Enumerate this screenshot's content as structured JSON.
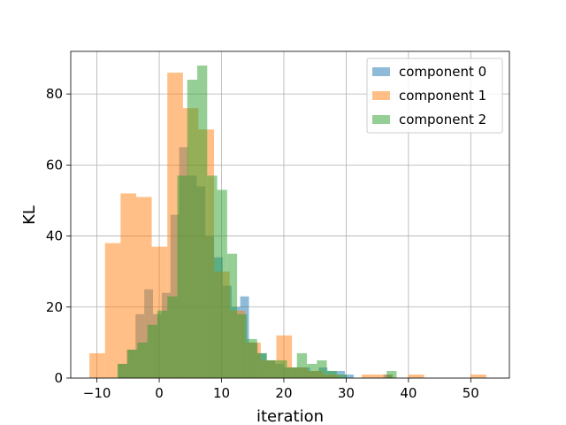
{
  "chart_data": {
    "type": "histogram",
    "xlabel": "iteration",
    "ylabel": "KL",
    "xlim": [
      -14.2,
      56.2
    ],
    "ylim": [
      0,
      92
    ],
    "xticks": [
      -10,
      0,
      10,
      20,
      30,
      40,
      50
    ],
    "yticks": [
      0,
      20,
      40,
      60,
      80
    ],
    "grid": true,
    "legend_position": "top-right",
    "alpha": 0.5,
    "series": [
      {
        "name": "component 0",
        "color": "#1f77b4",
        "bins": [
          [
            -6.6,
            -5.2,
            4
          ],
          [
            -5.2,
            -3.8,
            8
          ],
          [
            -3.8,
            -2.4,
            18
          ],
          [
            -2.4,
            -1.0,
            25
          ],
          [
            -1.0,
            0.4,
            18
          ],
          [
            0.4,
            1.8,
            24
          ],
          [
            1.8,
            3.2,
            46
          ],
          [
            3.2,
            4.6,
            65
          ],
          [
            4.6,
            6.0,
            57
          ],
          [
            6.0,
            7.4,
            54
          ],
          [
            7.4,
            8.8,
            40
          ],
          [
            8.8,
            10.2,
            34
          ],
          [
            10.2,
            11.6,
            26
          ],
          [
            11.6,
            13.0,
            20
          ],
          [
            13.0,
            14.4,
            23
          ],
          [
            14.4,
            15.8,
            10
          ],
          [
            15.8,
            17.2,
            7
          ],
          [
            17.2,
            18.6,
            5
          ],
          [
            18.6,
            20.0,
            4
          ],
          [
            20.0,
            21.4,
            3
          ],
          [
            21.4,
            22.8,
            3
          ],
          [
            22.8,
            24.2,
            3
          ],
          [
            24.2,
            25.6,
            2
          ],
          [
            25.6,
            27.0,
            3
          ],
          [
            27.0,
            28.4,
            2
          ],
          [
            28.4,
            29.8,
            2
          ],
          [
            29.8,
            31.2,
            1
          ],
          [
            36.0,
            37.4,
            1
          ]
        ]
      },
      {
        "name": "component 1",
        "color": "#ff7f0e",
        "bins": [
          [
            -11.2,
            -8.7,
            7
          ],
          [
            -8.7,
            -6.2,
            38
          ],
          [
            -6.2,
            -3.7,
            52
          ],
          [
            -3.7,
            -1.2,
            51
          ],
          [
            -1.2,
            1.3,
            37
          ],
          [
            1.3,
            3.8,
            86
          ],
          [
            3.8,
            6.3,
            76
          ],
          [
            6.3,
            8.8,
            70
          ],
          [
            8.8,
            11.3,
            30
          ],
          [
            11.3,
            13.8,
            19
          ],
          [
            13.8,
            16.3,
            10
          ],
          [
            16.3,
            18.8,
            5
          ],
          [
            18.8,
            21.3,
            12
          ],
          [
            21.3,
            23.8,
            3
          ],
          [
            23.8,
            26.3,
            2
          ],
          [
            26.3,
            28.8,
            1
          ],
          [
            32.5,
            35.0,
            1
          ],
          [
            35.0,
            37.5,
            1
          ],
          [
            40.0,
            42.5,
            1
          ],
          [
            50.0,
            52.5,
            1
          ]
        ]
      },
      {
        "name": "component 2",
        "color": "#2ca02c",
        "bins": [
          [
            -6.7,
            -5.1,
            4
          ],
          [
            -5.1,
            -3.5,
            8
          ],
          [
            -3.5,
            -1.9,
            10
          ],
          [
            -1.9,
            -0.3,
            15
          ],
          [
            -0.3,
            1.3,
            19
          ],
          [
            1.3,
            2.9,
            23
          ],
          [
            2.9,
            4.5,
            57
          ],
          [
            4.5,
            6.1,
            84
          ],
          [
            6.1,
            7.7,
            88
          ],
          [
            7.7,
            9.3,
            57
          ],
          [
            9.3,
            10.9,
            53
          ],
          [
            10.9,
            12.5,
            35
          ],
          [
            12.5,
            14.1,
            18
          ],
          [
            14.1,
            15.7,
            11
          ],
          [
            15.7,
            17.3,
            7
          ],
          [
            17.3,
            18.9,
            5
          ],
          [
            18.9,
            20.5,
            5
          ],
          [
            20.5,
            22.1,
            3
          ],
          [
            22.1,
            23.7,
            7
          ],
          [
            23.7,
            25.3,
            4
          ],
          [
            25.3,
            26.9,
            5
          ],
          [
            26.9,
            28.5,
            2
          ],
          [
            28.5,
            30.1,
            1
          ],
          [
            36.5,
            38.1,
            2
          ]
        ]
      }
    ]
  }
}
